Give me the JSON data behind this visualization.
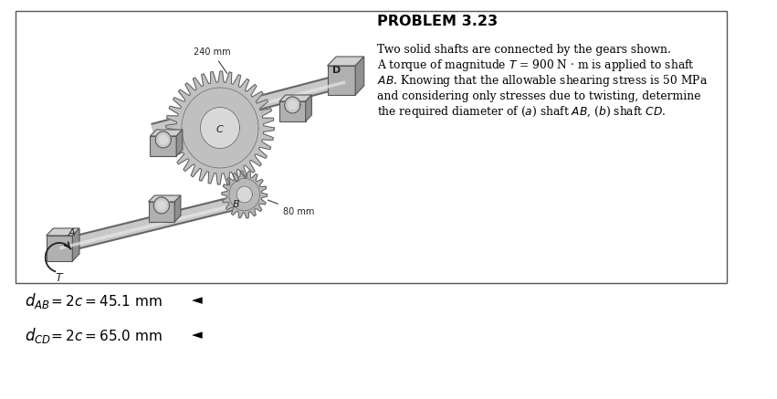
{
  "title": "PROBLEM 3.23",
  "problem_lines": [
    "Two solid shafts are connected by the gears shown.",
    "A torque of magnitude $T$ = 900 N · m is applied to shaft",
    "$AB$. Knowing that the allowable shearing stress is 50 MPa",
    "and considering only stresses due to twisting, determine",
    "the required diameter of ($a$) shaft $AB$, ($b$) shaft $CD$."
  ],
  "label_240mm": "240 mm",
  "label_80mm": "80 mm",
  "label_A": "A",
  "label_B": "B",
  "label_C": "C",
  "label_D": "D",
  "label_T": "T",
  "bg_color": "#ffffff",
  "box_facecolor": "#ffffff",
  "box_edgecolor": "#555555",
  "shaft_fill": "#c8c8c8",
  "shaft_edge": "#666666",
  "gear_large_fill": "#c0c0c0",
  "gear_large_edge": "#555555",
  "gear_small_fill": "#b8b8b8",
  "gear_small_edge": "#555555",
  "block_fill": "#b0b0b0",
  "block_top": "#d0d0d0",
  "block_right": "#909090",
  "block_edge": "#555555",
  "bracket_fill": "#bbbbbb",
  "text_color": "#000000",
  "answer_color": "#000000",
  "ans1_main": "$d_{AB}$",
  "ans1_rest": " = 2$c$ = 45.1 mm",
  "ans2_main": "$d_{CD}$",
  "ans2_rest": " = 2$c$ = 65.0 mm"
}
